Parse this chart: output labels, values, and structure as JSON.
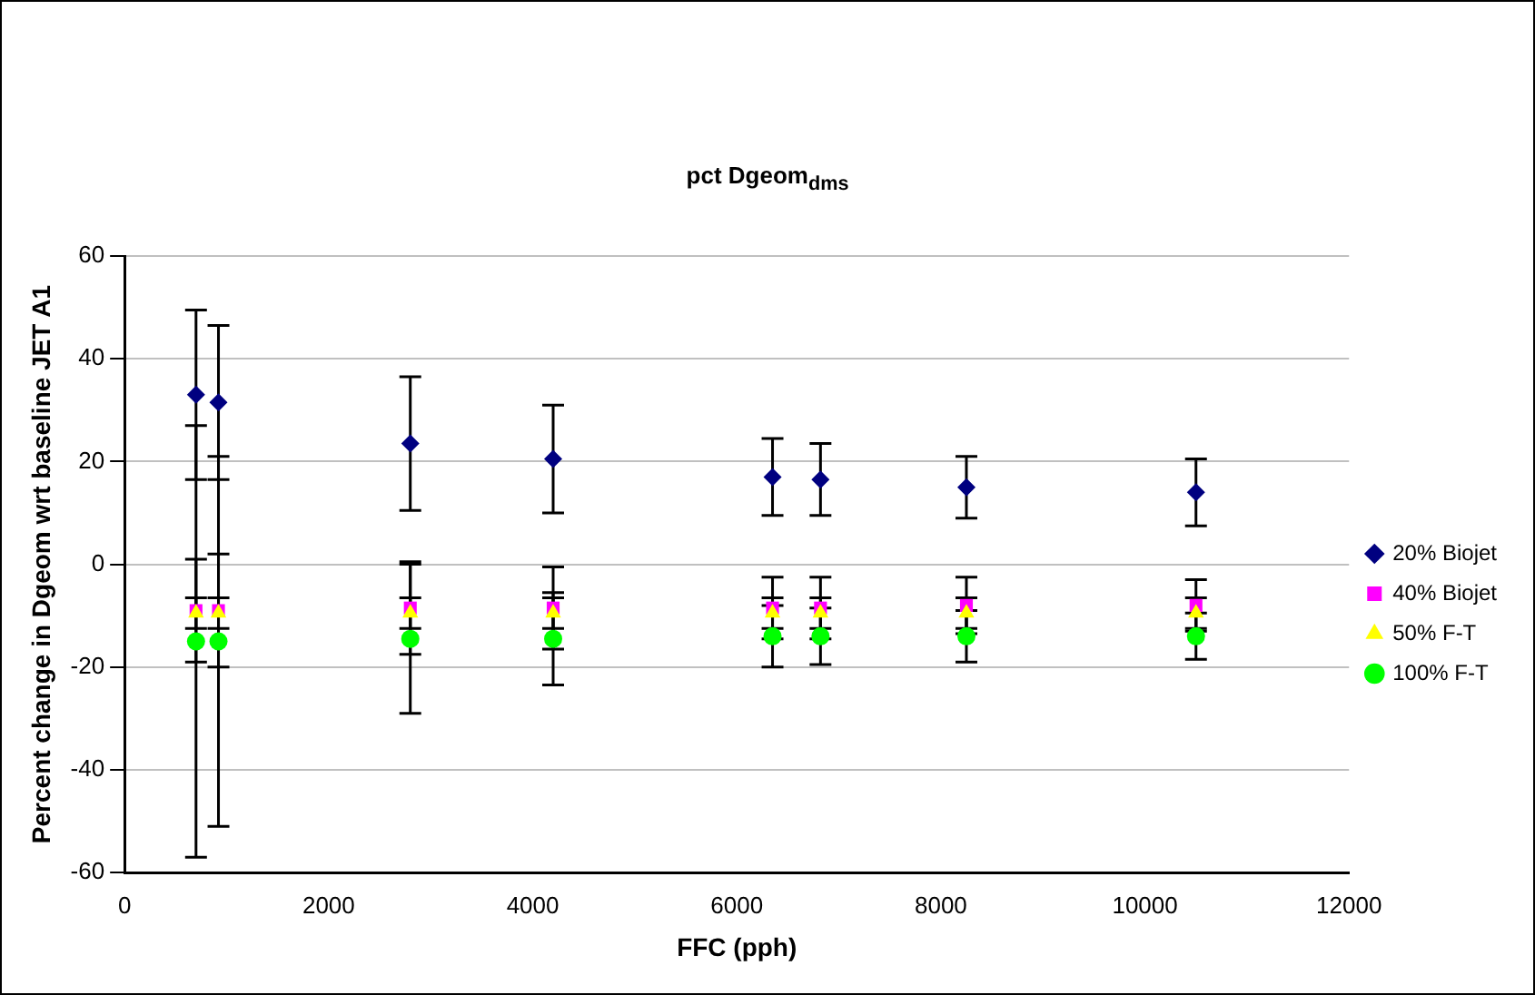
{
  "chart_data": {
    "type": "scatter",
    "title": "pct Dgeom$_{dms}$",
    "xlabel": "FFC (pph)",
    "ylabel": "Percent change in Dgeom wrt baseline JET A1",
    "x": [
      700,
      920,
      2800,
      4200,
      6350,
      6820,
      8250,
      10500
    ],
    "series": [
      {
        "name": "20% Biojet",
        "color": "#000080",
        "marker": "diamond",
        "values": [
          33,
          31.5,
          23.5,
          20.5,
          17,
          16.5,
          15,
          14
        ],
        "errors": [
          16.5,
          15,
          13,
          10.5,
          7.5,
          7,
          6,
          6.5
        ]
      },
      {
        "name": "40% Biojet",
        "color": "#ff00ff",
        "marker": "square",
        "values": [
          -9,
          -9,
          -8.5,
          -8.5,
          -8.5,
          -8.5,
          -8,
          -8
        ],
        "errors": [
          10,
          11,
          9,
          8,
          6,
          6,
          5.5,
          5
        ]
      },
      {
        "name": "50% F-T",
        "color": "#ffff00",
        "marker": "triangle",
        "values": [
          -9.5,
          -9.5,
          -9.5,
          -9.5,
          -9.5,
          -9.5,
          -9.5,
          -9.5
        ],
        "errors": [
          3,
          3,
          3,
          3,
          3,
          3,
          3,
          3
        ]
      },
      {
        "name": "100% F-T",
        "color": "#00ff00",
        "marker": "circle",
        "values": [
          -15,
          -15,
          -14.5,
          -14.5,
          -14,
          -14,
          -14,
          -14
        ],
        "errors": [
          42,
          36,
          14.5,
          9,
          6,
          5.5,
          5,
          4.5
        ]
      }
    ],
    "xlim": [
      0,
      12000
    ],
    "xticks": [
      0,
      2000,
      4000,
      6000,
      8000,
      10000,
      12000
    ],
    "ylim": [
      -60,
      60
    ],
    "yticks": [
      -60,
      -40,
      -20,
      0,
      20,
      40,
      60
    ],
    "grid": "y",
    "legend": "right"
  }
}
